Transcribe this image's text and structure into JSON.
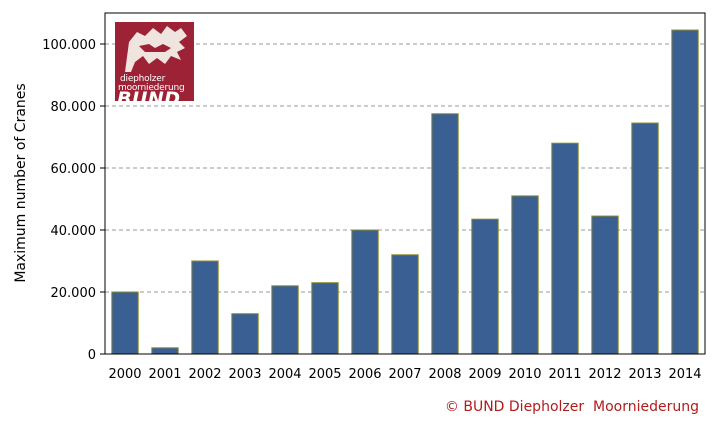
{
  "chart_data": {
    "type": "bar",
    "categories": [
      "2000",
      "2001",
      "2002",
      "2003",
      "2004",
      "2005",
      "2006",
      "2007",
      "2008",
      "2009",
      "2010",
      "2011",
      "2012",
      "2013",
      "2014"
    ],
    "values": [
      20000,
      2000,
      30000,
      13000,
      22000,
      23000,
      40000,
      32000,
      77500,
      43500,
      51000,
      68000,
      44500,
      74500,
      104500
    ],
    "ylabel": "Maximum  number of Cranes",
    "xlabel": "",
    "ylim": [
      0,
      110000
    ],
    "yticks": [
      0,
      20000,
      40000,
      60000,
      80000,
      100000
    ],
    "ytick_labels": [
      "0",
      "20.000",
      "40.000",
      "60.000",
      "80.000",
      "100.000"
    ],
    "grid": true,
    "bar_color": "#3a6093",
    "bar_edge_color": "#8a8a2a"
  },
  "logo": {
    "line1": "diepholzer",
    "line2": "moorniederung",
    "brand": "BUND",
    "color": "#9d2235"
  },
  "copyright": "© BUND Diepholzer  Moorniederung",
  "copyright_color": "#b01c1c"
}
